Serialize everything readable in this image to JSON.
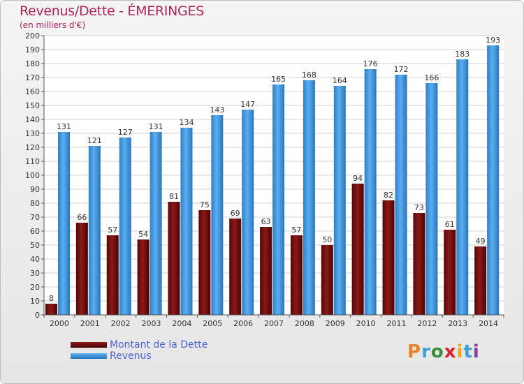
{
  "header": {
    "title": "Revenus/Dette - ÉMERINGES",
    "subtitle": "(en milliers d'€)"
  },
  "legend": {
    "items": [
      {
        "label": "Montant de la Dette",
        "color": "#6b0a0a"
      },
      {
        "label": "Revenus",
        "color": "#3d8fd6"
      }
    ]
  },
  "logo": {
    "text": "Proxiti",
    "colors": [
      "#e8812b",
      "#3ba0d8",
      "#3a8f3a",
      "#d8262e",
      "#f0a51c",
      "#3ba0d8",
      "#8a3fa0"
    ]
  },
  "chart_data": {
    "type": "bar",
    "title": "Revenus/Dette - ÉMERINGES",
    "subtitle": "(en milliers d'€)",
    "categories": [
      "2000",
      "2001",
      "2002",
      "2003",
      "2004",
      "2005",
      "2006",
      "2007",
      "2008",
      "2009",
      "2010",
      "2011",
      "2012",
      "2013",
      "2014"
    ],
    "series": [
      {
        "name": "Montant de la Dette",
        "values": [
          8,
          66,
          57,
          54,
          81,
          75,
          69,
          63,
          57,
          50,
          94,
          82,
          73,
          61,
          49
        ],
        "color": "#6b0a0a"
      },
      {
        "name": "Revenus",
        "values": [
          131,
          121,
          127,
          131,
          134,
          143,
          147,
          165,
          168,
          164,
          176,
          172,
          166,
          183,
          193
        ],
        "color": "#3d8fd6"
      }
    ],
    "ylim": [
      0,
      200
    ],
    "ytick_step": 10,
    "grid": true,
    "legend_position": "bottom-left"
  }
}
